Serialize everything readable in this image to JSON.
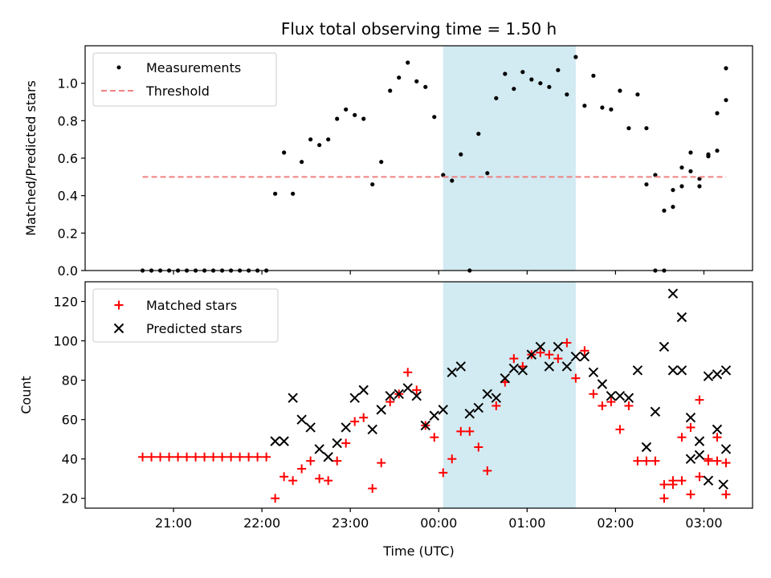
{
  "chart_data": [
    {
      "type": "scatter",
      "title": "Flux total observing time = 1.50 h",
      "xlabel": "",
      "ylabel": "Matched/Predicted stars",
      "ylim": [
        0,
        1.2
      ],
      "y_ticks": [
        0.0,
        0.2,
        0.4,
        0.6,
        0.8,
        1.0
      ],
      "y_tick_labels": [
        "0.0",
        "0.2",
        "0.4",
        "0.6",
        "0.8",
        "1.0"
      ],
      "highlight": {
        "start": 24.05,
        "end": 25.55,
        "color": "#add8e6"
      },
      "series": [
        {
          "name": "Measurements",
          "marker": "dot",
          "color": "#000000",
          "x": [
            20.65,
            20.75,
            20.85,
            20.95,
            21.05,
            21.15,
            21.25,
            21.35,
            21.45,
            21.55,
            21.65,
            21.75,
            21.85,
            21.95,
            22.05,
            22.15,
            22.25,
            22.35,
            22.45,
            22.55,
            22.65,
            22.75,
            22.85,
            22.95,
            23.05,
            23.15,
            23.25,
            23.35,
            23.45,
            23.55,
            23.65,
            23.75,
            23.85,
            23.95,
            24.05,
            24.15,
            24.25,
            24.35,
            24.45,
            24.55,
            24.65,
            24.75,
            24.85,
            24.95,
            25.05,
            25.15,
            25.25,
            25.35,
            25.45,
            25.55,
            25.65,
            25.75,
            25.85,
            25.95,
            26.05,
            26.15,
            26.25,
            26.35,
            26.45,
            26.55,
            26.65,
            26.75,
            26.85,
            26.95,
            27.05,
            27.15,
            27.25
          ],
          "y": [
            0,
            0,
            0,
            0,
            0,
            0,
            0,
            0,
            0,
            0,
            0,
            0,
            0,
            0,
            0,
            0.41,
            0.63,
            0.41,
            0.58,
            0.7,
            0.67,
            0.7,
            0.81,
            0.86,
            0.83,
            0.81,
            0.46,
            0.58,
            0.96,
            1.03,
            1.11,
            1.01,
            0.98,
            0.82,
            0.51,
            0.48,
            0.62,
            0,
            0.73,
            0.52,
            0.92,
            1.05,
            0.97,
            1.06,
            1.02,
            1.0,
            0.98,
            1.07,
            0.94,
            1.14,
            0.88,
            1.04,
            0.87,
            0.86,
            0.96,
            0.76,
            0.94,
            0.46,
            0,
            0,
            0.43,
            0.45,
            0.53,
            0.45,
            0.62,
            0.64,
            0.91
          ]
        },
        {
          "name": "Measurements",
          "marker": "dot",
          "color": "#000000",
          "x": [
            26.35,
            26.45,
            26.55,
            26.65,
            26.75,
            26.85,
            26.95,
            27.05,
            27.15,
            27.25
          ],
          "y": [
            0.76,
            0.51,
            0.32,
            0.34,
            0.55,
            0.63,
            0.49,
            0.61,
            0.84,
            1.08
          ]
        },
        {
          "name": "Threshold",
          "marker": "dashed-line",
          "color": "#f08080",
          "x": [
            20.65,
            27.25
          ],
          "y": [
            0.5,
            0.5
          ]
        }
      ],
      "legend": {
        "position": "top-left",
        "entries": [
          "Measurements",
          "Threshold"
        ]
      }
    },
    {
      "type": "scatter",
      "title": "",
      "xlabel": "Time (UTC)",
      "ylabel": "Count",
      "ylim": [
        15,
        130
      ],
      "y_ticks": [
        20,
        40,
        60,
        80,
        100,
        120
      ],
      "y_tick_labels": [
        "20",
        "40",
        "60",
        "80",
        "100",
        "120"
      ],
      "xlim": [
        20.0,
        27.55
      ],
      "x_ticks": [
        21,
        22,
        23,
        24,
        25,
        26,
        27
      ],
      "x_tick_labels": [
        "21:00",
        "22:00",
        "23:00",
        "00:00",
        "01:00",
        "02:00",
        "03:00"
      ],
      "highlight": {
        "start": 24.05,
        "end": 25.55,
        "color": "#add8e6"
      },
      "series": [
        {
          "name": "Matched stars",
          "marker": "plus",
          "color": "#ff0000",
          "x": [
            20.65,
            20.75,
            20.85,
            20.95,
            21.05,
            21.15,
            21.25,
            21.35,
            21.45,
            21.55,
            21.65,
            21.75,
            21.85,
            21.95,
            22.05,
            22.15,
            22.25,
            22.35,
            22.45,
            22.55,
            22.65,
            22.75,
            22.85,
            22.95,
            23.05,
            23.15,
            23.25,
            23.35,
            23.45,
            23.55,
            23.65,
            23.75,
            23.85,
            23.95,
            24.05,
            24.15,
            24.25,
            24.35,
            24.45,
            24.55,
            24.65,
            24.75,
            24.85,
            24.95,
            25.05,
            25.15,
            25.25,
            25.35,
            25.45,
            25.55,
            25.65,
            25.75,
            25.85,
            25.95,
            26.05,
            26.15,
            26.25,
            26.35,
            26.45,
            26.55,
            26.65,
            26.75,
            26.85,
            26.95,
            27.05,
            27.15,
            27.25
          ],
          "y": [
            41,
            41,
            41,
            41,
            41,
            41,
            41,
            41,
            41,
            41,
            41,
            41,
            41,
            41,
            41,
            20,
            31,
            29,
            35,
            39,
            30,
            29,
            39,
            48,
            59,
            61,
            25,
            38,
            69,
            73,
            84,
            75,
            57,
            51,
            33,
            40,
            54,
            54,
            46,
            34,
            67,
            79,
            91,
            87,
            93,
            94,
            93,
            91,
            99,
            81,
            95,
            73,
            67,
            69,
            55,
            67,
            39,
            39,
            39,
            20,
            29,
            51,
            56,
            70,
            39,
            39,
            22
          ]
        },
        {
          "name": "Matched stars",
          "marker": "plus",
          "color": "#ff0000",
          "x": [
            26.55,
            26.65,
            26.75,
            26.85,
            26.95,
            27.05,
            27.15,
            27.25
          ],
          "y": [
            27,
            27,
            29,
            22,
            31,
            40,
            51,
            38
          ]
        },
        {
          "name": "Predicted stars",
          "marker": "x",
          "color": "#000000",
          "x": [
            22.15,
            22.25,
            22.35,
            22.45,
            22.55,
            22.65,
            22.75,
            22.85,
            22.95,
            23.05,
            23.15,
            23.25,
            23.35,
            23.45,
            23.55,
            23.65,
            23.75,
            23.85,
            23.95,
            24.05,
            24.15,
            24.25,
            24.35,
            24.45,
            24.55,
            24.65,
            24.75,
            24.85,
            24.95,
            25.05,
            25.15,
            25.25,
            25.35,
            25.45,
            25.55,
            25.65,
            25.75,
            25.85,
            25.95,
            26.05,
            26.15,
            26.25,
            26.35,
            26.45,
            26.55,
            26.65,
            26.75,
            26.85,
            26.95,
            27.05,
            27.15,
            27.25
          ],
          "y": [
            49,
            49,
            71,
            60,
            56,
            45,
            41,
            48,
            56,
            71,
            75,
            55,
            65,
            72,
            73,
            76,
            72,
            57,
            62,
            65,
            84,
            87,
            63,
            66,
            73,
            71,
            81,
            86,
            85,
            93,
            97,
            87,
            97,
            87,
            92,
            92,
            84,
            78,
            72,
            72,
            71,
            85,
            46,
            64,
            97,
            124,
            112,
            61,
            42,
            29,
            55,
            85
          ]
        },
        {
          "name": "Predicted stars",
          "marker": "x",
          "color": "#000000",
          "x": [
            26.65,
            26.75,
            26.85,
            26.95,
            27.05,
            27.15,
            27.25
          ],
          "y": [
            85,
            85,
            40,
            49,
            82,
            83,
            45
          ]
        },
        {
          "name": "Predicted stars",
          "marker": "x",
          "color": "#000000",
          "x": [
            27.22
          ],
          "y": [
            27
          ]
        }
      ],
      "legend": {
        "position": "top-left",
        "entries": [
          "Matched stars",
          "Predicted stars"
        ]
      }
    }
  ]
}
